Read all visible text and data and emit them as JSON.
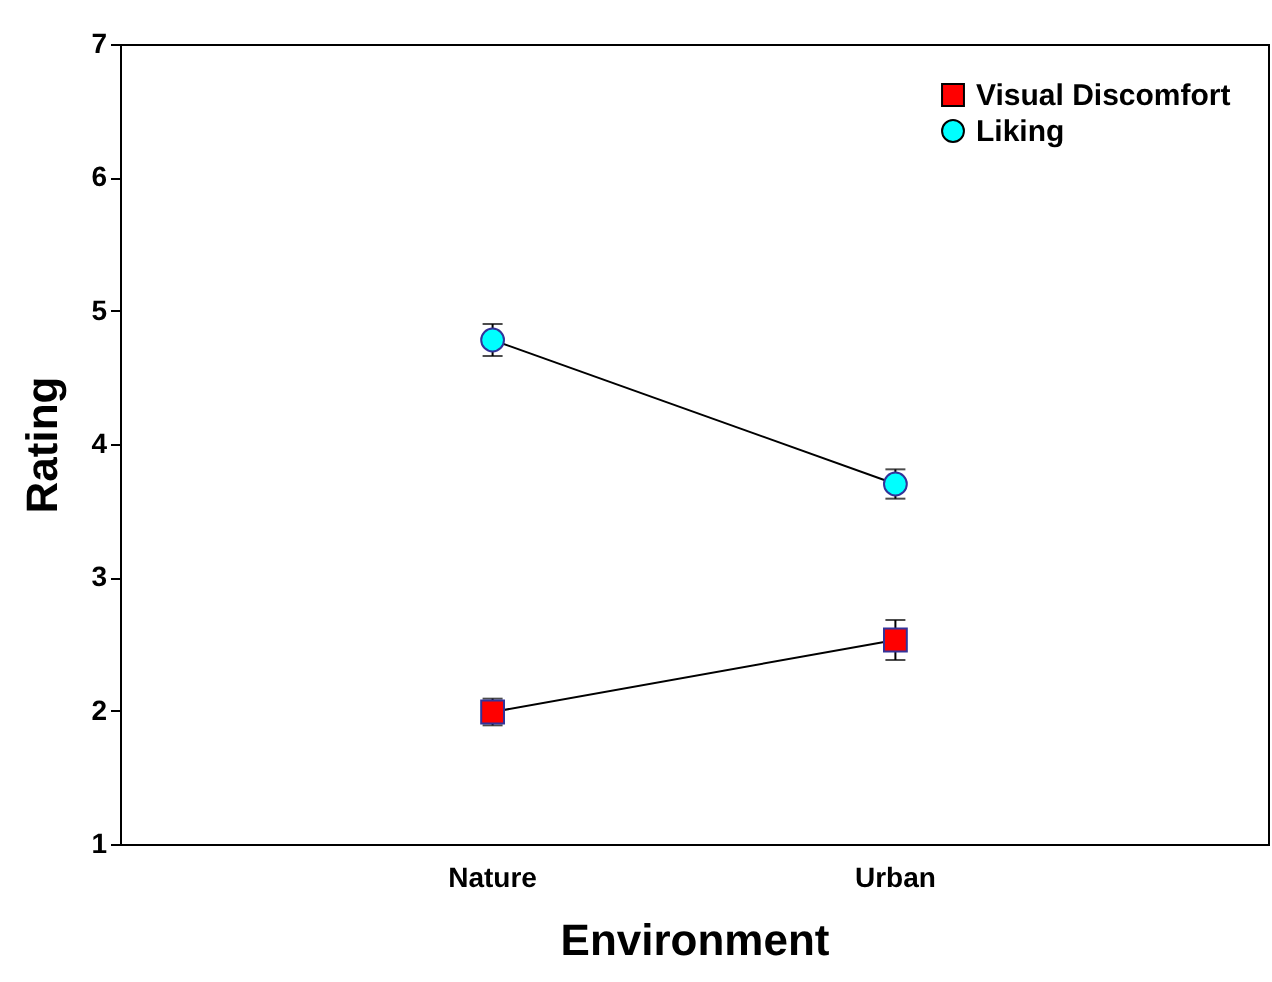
{
  "chart_data": {
    "type": "line",
    "xlabel": "Environment",
    "ylabel": "Rating",
    "categories": [
      "Nature",
      "Urban"
    ],
    "series": [
      {
        "name": "Visual Discomfort",
        "color": "#ff0000",
        "marker": "square",
        "values": [
          1.99,
          2.53
        ],
        "errors": [
          0.1,
          0.15
        ]
      },
      {
        "name": "Liking",
        "color": "#00ffff",
        "marker": "circle",
        "values": [
          4.78,
          3.7
        ],
        "errors": [
          0.12,
          0.11
        ]
      }
    ],
    "ylim": [
      1,
      7
    ],
    "yticks": [
      1,
      2,
      3,
      4,
      5,
      6,
      7
    ],
    "grid": false,
    "legend": "top right"
  }
}
